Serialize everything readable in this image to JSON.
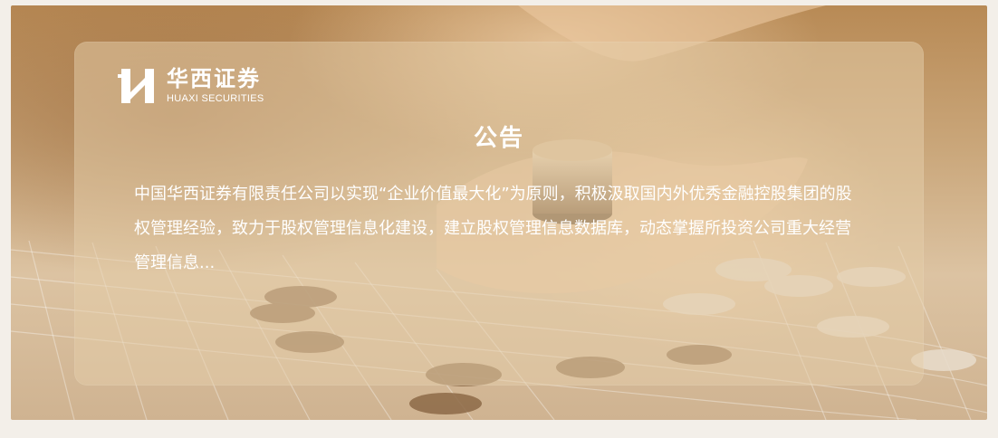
{
  "brand": {
    "name_cn": "华西证券",
    "name_en": "HUAXI SECURITIES"
  },
  "notice": {
    "title": "公告",
    "body": "中国华西证券有限责任公司以实现“企业价值最大化”为原则，积极汲取国内外优秀金融控股集团的股权管理经验，致力于股权管理信息化建设，建立股权管理信息数据库，动态掌握所投资公司重大经营管理信息..."
  },
  "colors": {
    "page_background": "#f3efe9",
    "text": "#ffffff",
    "card_tint": "#e4cda8"
  },
  "icons": [
    "huaxi-logo-icon"
  ]
}
